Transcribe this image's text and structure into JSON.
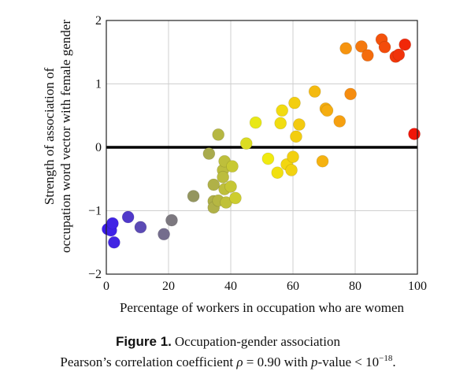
{
  "chart_data": {
    "type": "scatter",
    "xlabel": "Percentage of workers in occupation who are women",
    "ylabel_lines": [
      "Strength of association of",
      "occupation word vector with female gender"
    ],
    "xlim": [
      0,
      100
    ],
    "ylim": [
      -2,
      2
    ],
    "x_ticks": [
      0,
      20,
      40,
      60,
      80,
      100
    ],
    "y_ticks": [
      -2,
      -1,
      0,
      1,
      2
    ],
    "grid": true,
    "zero_line": true,
    "color_scale": [
      "#3a1af0",
      "#888a6a",
      "#f0f010",
      "#f6a010",
      "#f01008"
    ],
    "points": [
      {
        "x": 0.5,
        "y": -1.29
      },
      {
        "x": 1.5,
        "y": -1.31
      },
      {
        "x": 2.0,
        "y": -1.2
      },
      {
        "x": 2.5,
        "y": -1.5
      },
      {
        "x": 7,
        "y": -1.1
      },
      {
        "x": 11,
        "y": -1.26
      },
      {
        "x": 18.5,
        "y": -1.37
      },
      {
        "x": 21,
        "y": -1.15
      },
      {
        "x": 28,
        "y": -0.77
      },
      {
        "x": 33,
        "y": -0.1
      },
      {
        "x": 34.5,
        "y": -0.59
      },
      {
        "x": 34.5,
        "y": -0.85
      },
      {
        "x": 34.5,
        "y": -0.95
      },
      {
        "x": 36,
        "y": -0.84
      },
      {
        "x": 36,
        "y": 0.2
      },
      {
        "x": 37.5,
        "y": -0.36
      },
      {
        "x": 37.5,
        "y": -0.47
      },
      {
        "x": 38,
        "y": -0.66
      },
      {
        "x": 38,
        "y": -0.22
      },
      {
        "x": 38.5,
        "y": -0.87
      },
      {
        "x": 40,
        "y": -0.62
      },
      {
        "x": 40.5,
        "y": -0.3
      },
      {
        "x": 41.5,
        "y": -0.8
      },
      {
        "x": 45,
        "y": 0.06
      },
      {
        "x": 48,
        "y": 0.39
      },
      {
        "x": 52,
        "y": -0.18
      },
      {
        "x": 55,
        "y": -0.4
      },
      {
        "x": 56,
        "y": 0.38
      },
      {
        "x": 56.5,
        "y": 0.58
      },
      {
        "x": 58,
        "y": -0.27
      },
      {
        "x": 59.5,
        "y": -0.36
      },
      {
        "x": 60,
        "y": -0.15
      },
      {
        "x": 60.5,
        "y": 0.7
      },
      {
        "x": 61,
        "y": 0.17
      },
      {
        "x": 62,
        "y": 0.36
      },
      {
        "x": 67,
        "y": 0.88
      },
      {
        "x": 69.5,
        "y": -0.22
      },
      {
        "x": 70.5,
        "y": 0.61
      },
      {
        "x": 71,
        "y": 0.58
      },
      {
        "x": 75,
        "y": 0.41
      },
      {
        "x": 78.5,
        "y": 0.84
      },
      {
        "x": 77,
        "y": 1.56
      },
      {
        "x": 82,
        "y": 1.59
      },
      {
        "x": 84,
        "y": 1.45
      },
      {
        "x": 88.5,
        "y": 1.7
      },
      {
        "x": 89.5,
        "y": 1.58
      },
      {
        "x": 93,
        "y": 1.43
      },
      {
        "x": 94,
        "y": 1.46
      },
      {
        "x": 96,
        "y": 1.62
      },
      {
        "x": 99,
        "y": 0.21
      }
    ]
  },
  "caption": {
    "figure_label": "Figure 1.",
    "title": "Occupation-gender association",
    "line2_prefix": "Pearson’s correlation coefficient",
    "rho_symbol": "ρ",
    "equals": "= 0.90 with",
    "p_label": "p",
    "p_text": "-value < 10",
    "p_exponent": "−18",
    "period": "."
  }
}
